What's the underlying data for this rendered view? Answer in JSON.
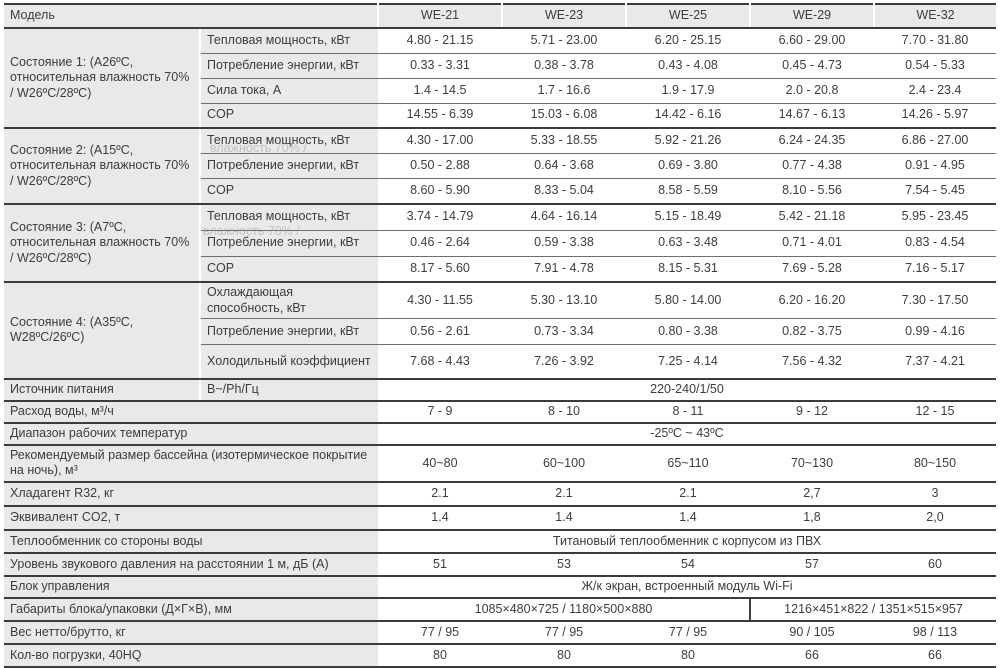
{
  "colors": {
    "label_bg": "#e9e9e9",
    "line_inner": "#6e6e6e",
    "line_strong": "#3c3c3c",
    "text": "#3d3d3d"
  },
  "header": {
    "model_label": "Модель",
    "models": [
      "WE-21",
      "WE-23",
      "WE-25",
      "WE-29",
      "WE-32"
    ]
  },
  "groups": [
    {
      "category": "Состояние 1: (A26ºC, относительная влажность 70% / W26ºC/28ºC)",
      "rows": [
        {
          "param": "Тепловая мощность, кВт",
          "values": [
            "4.80 - 21.15",
            "5.71 - 23.00",
            "6.20 - 25.15",
            "6.60 - 29.00",
            "7.70 - 31.80"
          ]
        },
        {
          "param": "Потребление энергии, кВт",
          "values": [
            "0.33 - 3.31",
            "0.38 - 3.78",
            "0.43 - 4.08",
            "0.45 - 4.73",
            "0.54 - 5.33"
          ]
        },
        {
          "param": "Сила тока, А",
          "values": [
            "1.4 - 14.5",
            "1.7 - 16.6",
            "1.9 - 17.9",
            "2.0 - 20.8",
            "2.4 - 23.4"
          ]
        },
        {
          "param": "COP",
          "values": [
            "14.55 - 6.39",
            "15.03 - 6.08",
            "14.42 - 6.16",
            "14.67 - 6.13",
            "14.26 - 5.97"
          ]
        }
      ]
    },
    {
      "category": "Состояние 2: (A15ºC, относительная влажность 70% / W26ºC/28ºC)",
      "rows": [
        {
          "param": "Тепловая мощность, кВт",
          "values": [
            "4.30 - 17.00",
            "5.33 - 18.55",
            "5.92 - 21.26",
            "6.24 - 24.35",
            "6.86 - 27.00"
          ]
        },
        {
          "param": "Потребление энергии, кВт",
          "values": [
            "0.50 - 2.88",
            "0.64 - 3.68",
            "0.69 - 3.80",
            "0.77 - 4.38",
            "0.91 - 4.95"
          ]
        },
        {
          "param": "COP",
          "values": [
            "8.60 - 5.90",
            "8.33 - 5.04",
            "8.58 - 5.59",
            "8.10 - 5.56",
            "7.54 - 5.45"
          ]
        }
      ]
    },
    {
      "category": "Состояние 3: (A7ºC, относительная влажность 70% / W26ºC/28ºC)",
      "rows": [
        {
          "param": "Тепловая мощность, кВт",
          "values": [
            "3.74 - 14.79",
            "4.64 - 16.14",
            "5.15 - 18.49",
            "5.42 - 21.18",
            "5.95 - 23.45"
          ]
        },
        {
          "param": "Потребление энергии, кВт",
          "values": [
            "0.46 - 2.64",
            "0.59 - 3.38",
            "0.63 - 3.48",
            "0.71 - 4.01",
            "0.83 - 4.54"
          ]
        },
        {
          "param": "COP",
          "values": [
            "8.17 - 5.60",
            "7.91 - 4.78",
            "8.15 - 5.31",
            "7.69 - 5.28",
            "7.16 - 5.17"
          ]
        }
      ]
    },
    {
      "category": "Состояние 4: (A35ºC, W28ºC/26ºC)",
      "rows": [
        {
          "param": "Охлаждающая способность, кВт",
          "values": [
            "4.30 - 11.55",
            "5.30 - 13.10",
            "5.80 - 14.00",
            "6.20 - 16.20",
            "7.30 - 17.50"
          ]
        },
        {
          "param": "Потребление энергии, кВт",
          "values": [
            "0.56 - 2.61",
            "0.73 - 3.34",
            "0.80 - 3.38",
            "0.82 - 3.75",
            "0.99 - 4.16"
          ]
        },
        {
          "param": "Холодильный коэффициент",
          "values": [
            "7.68 - 4.43",
            "7.26 - 3.92",
            "7.25 - 4.14",
            "7.56 - 4.32",
            "7.37 - 4.21"
          ]
        }
      ]
    }
  ],
  "simple_rows": [
    {
      "type": "param_span",
      "label": "Источник питания",
      "param": "В~/Ph/Гц",
      "span_value": "220-240/1/50"
    },
    {
      "type": "values",
      "label": "Расход воды, м³/ч",
      "values": [
        "7 - 9",
        "8 - 10",
        "8 - 11",
        "9 - 12",
        "12 - 15"
      ]
    },
    {
      "type": "span",
      "label": "Диапазон рабочих температур",
      "span_value": "-25ºC ~ 43ºC"
    },
    {
      "type": "values",
      "label": "Рекомендуемый размер бассейна (изотермическое покрытие на ночь), м³",
      "values": [
        "40~80",
        "60~100",
        "65~110",
        "70~130",
        "80~150"
      ]
    },
    {
      "type": "values",
      "label": "Хладагент R32, кг",
      "values": [
        "2.1",
        "2.1",
        "2.1",
        "2,7",
        "3"
      ]
    },
    {
      "type": "values",
      "label": "Эквивалент CO2, т",
      "values": [
        "1.4",
        "1.4",
        "1.4",
        "1,8",
        "2,0"
      ]
    },
    {
      "type": "span",
      "label": "Теплообменник со стороны воды",
      "span_value": "Титановый теплообменник с корпусом из ПВХ"
    },
    {
      "type": "values",
      "label": "Уровень звукового давления на расстоянии 1 м, дБ (А)",
      "values": [
        "51",
        "53",
        "54",
        "57",
        "60"
      ]
    },
    {
      "type": "span",
      "label": "Блок управления",
      "span_value": "Ж/к экран, встроенный модуль Wi-Fi"
    },
    {
      "type": "split",
      "label": "Габариты блока/упаковки (Д×Г×В), мм",
      "left_value": "1085×480×725 / 1180×500×880",
      "right_value": "1216×451×822 / 1351×515×957"
    },
    {
      "type": "values",
      "label": "Вес нетто/брутто, кг",
      "values": [
        "77 / 95",
        "77 / 95",
        "77 / 95",
        "90 / 105",
        "98 / 113"
      ]
    },
    {
      "type": "values",
      "label": "Кол-во погрузки, 40HQ",
      "values": [
        "80",
        "80",
        "80",
        "66",
        "66"
      ]
    }
  ],
  "ghosts": [
    {
      "text": "влажность 70% /"
    },
    {
      "text": "влажность 70% /"
    }
  ]
}
